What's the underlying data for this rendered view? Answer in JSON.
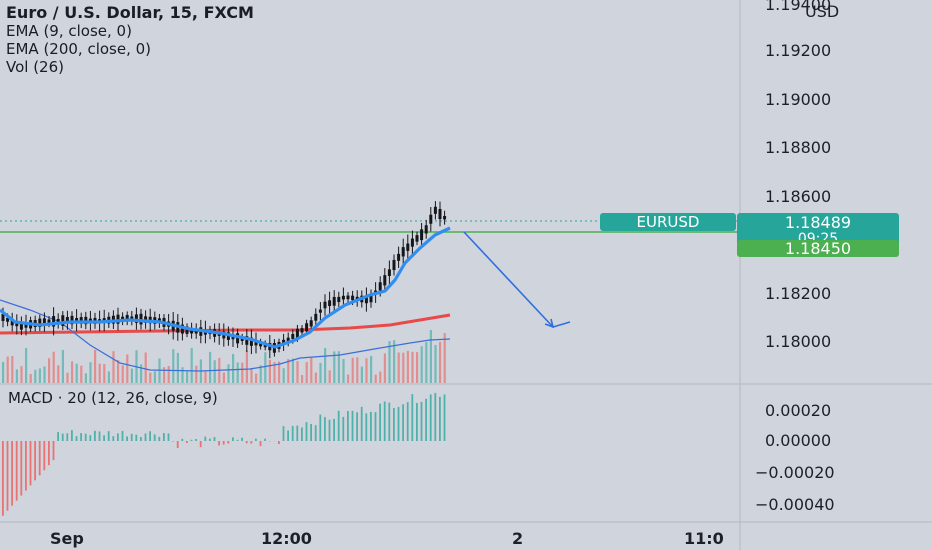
{
  "legend": {
    "symbol": "Euro / U.S. Dollar, 15, FXCM",
    "ema9": "EMA (9, close, 0)",
    "ema200": "EMA (200, close, 0)",
    "vol": "Vol (26)"
  },
  "macd_label": "MACD · 20 (12, 26, close, 9)",
  "price_axis": {
    "top_partial": "1.19400",
    "currency": "USD",
    "labels": [
      "1.19200",
      "1.19000",
      "1.18800",
      "1.18600",
      "1.18200",
      "1.18000"
    ],
    "symbol_tag": "EURUSD",
    "last_price": "1.18489",
    "countdown": "09:25",
    "line_price": "1.18450",
    "colors": {
      "last": "#26a69a",
      "line": "#4caf50"
    }
  },
  "macd_axis": {
    "labels": [
      "0.00020",
      "0.00000",
      "−0.00020",
      "−0.00040"
    ]
  },
  "time_axis": {
    "labels": [
      "Sep",
      "12:00",
      "2",
      "11:0"
    ]
  },
  "colors": {
    "ema9": "#2f8ef0",
    "ema200": "#e84a4a",
    "candle": "#15161a",
    "vol_up": "#26a69a",
    "vol_down": "#ef5350",
    "arrow": "#2f6fe0"
  }
}
